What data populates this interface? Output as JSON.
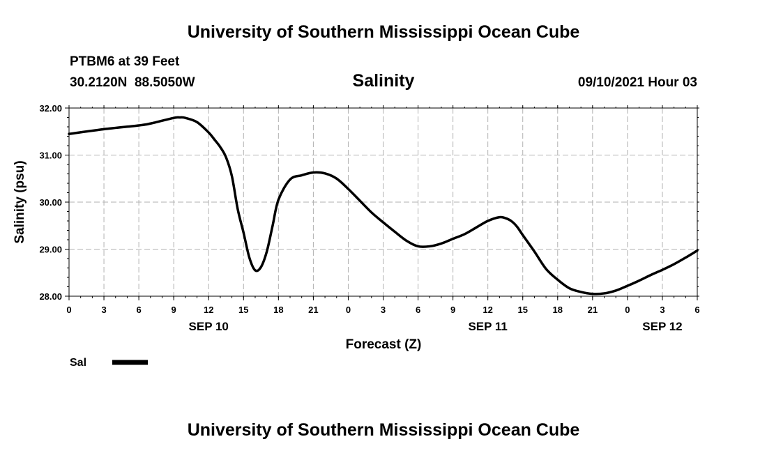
{
  "header": {
    "title": "University of Southern Mississippi Ocean Cube",
    "station": "PTBM6 at 39 Feet",
    "coords": "30.2120N  88.5050W",
    "variable": "Salinity",
    "datetime": "09/10/2021 Hour 03"
  },
  "footer": {
    "title": "University of Southern Mississippi Ocean Cube"
  },
  "legend": {
    "label": "Sal",
    "color": "#000000"
  },
  "chart_data": {
    "type": "line",
    "title": "Salinity",
    "xlabel": "Forecast (Z)",
    "ylabel": "Salinity (psu)",
    "xlim": [
      0,
      54
    ],
    "ylim": [
      28.0,
      32.0
    ],
    "grid": true,
    "x_ticks": [
      0,
      3,
      6,
      9,
      12,
      15,
      18,
      21,
      24,
      27,
      30,
      33,
      36,
      39,
      42,
      45,
      48,
      51,
      54
    ],
    "x_tick_labels": [
      "0",
      "3",
      "6",
      "9",
      "12",
      "15",
      "18",
      "21",
      "0",
      "3",
      "6",
      "9",
      "12",
      "15",
      "18",
      "21",
      "0",
      "3",
      "6"
    ],
    "y_ticks": [
      28,
      29,
      30,
      31,
      32
    ],
    "y_tick_labels": [
      "28.00",
      "29.00",
      "30.00",
      "31.00",
      "32.00"
    ],
    "date_labels": [
      {
        "x": 12,
        "label": "SEP 10"
      },
      {
        "x": 36,
        "label": "SEP 11"
      },
      {
        "x": 51,
        "label": "SEP 12"
      }
    ],
    "series": [
      {
        "name": "Sal",
        "x": [
          0,
          3,
          6,
          7,
          9,
          9.5,
          10,
          11,
          12,
          12.5,
          13,
          13.5,
          14,
          14.5,
          15,
          15.5,
          16,
          16.5,
          17,
          17.5,
          18,
          19,
          20,
          21,
          22,
          23,
          24,
          25,
          26,
          27,
          28,
          29,
          30,
          31,
          32,
          33,
          34,
          35,
          36,
          37,
          37.5,
          38,
          38.5,
          39,
          40,
          41,
          42,
          43,
          44,
          45,
          46,
          47,
          48,
          49,
          50,
          51,
          52,
          53,
          54
        ],
        "y": [
          31.45,
          31.55,
          31.63,
          31.67,
          31.79,
          31.8,
          31.79,
          31.7,
          31.48,
          31.33,
          31.17,
          30.95,
          30.55,
          29.85,
          29.35,
          28.82,
          28.55,
          28.62,
          28.95,
          29.5,
          30.05,
          30.48,
          30.57,
          30.63,
          30.61,
          30.5,
          30.28,
          30.03,
          29.78,
          29.57,
          29.37,
          29.18,
          29.06,
          29.06,
          29.12,
          29.22,
          29.32,
          29.46,
          29.6,
          29.68,
          29.66,
          29.6,
          29.48,
          29.3,
          28.95,
          28.58,
          28.35,
          28.17,
          28.09,
          28.05,
          28.06,
          28.12,
          28.22,
          28.33,
          28.45,
          28.56,
          28.68,
          28.82,
          28.97
        ]
      }
    ]
  }
}
